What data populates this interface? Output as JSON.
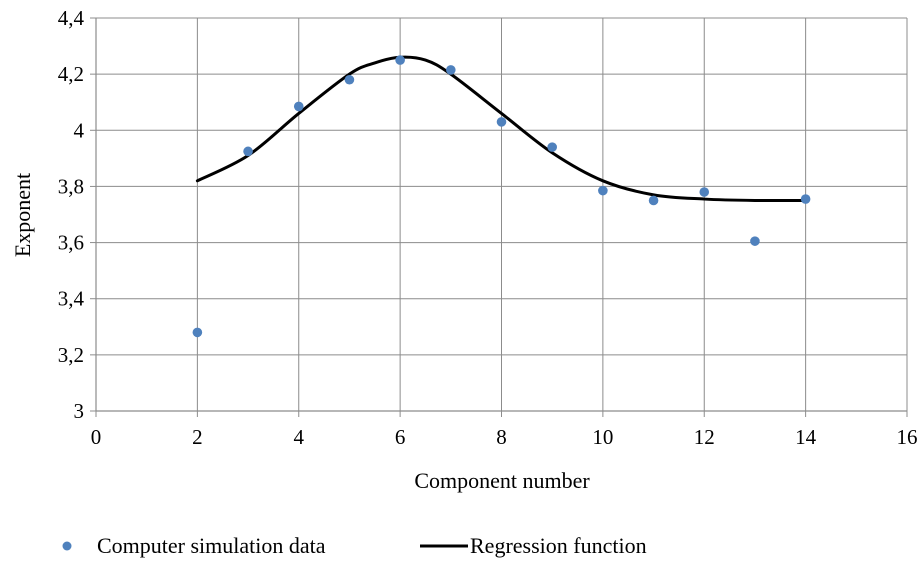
{
  "chart_data": {
    "type": "scatter",
    "xlabel": "Component number",
    "ylabel": "Exponent",
    "xlim": [
      0,
      16
    ],
    "ylim": [
      3,
      4.4
    ],
    "xticks": [
      0,
      2,
      4,
      6,
      8,
      10,
      12,
      14,
      16
    ],
    "yticks": [
      3,
      3.2,
      3.4,
      3.6,
      3.8,
      4,
      4.2,
      4.4
    ],
    "xtick_labels": [
      "0",
      "2",
      "4",
      "6",
      "8",
      "10",
      "12",
      "14",
      "16"
    ],
    "ytick_labels": [
      "3",
      "3,2",
      "3,4",
      "3,6",
      "3,8",
      "4",
      "4,2",
      "4,4"
    ],
    "grid": true,
    "legend_position": "bottom",
    "series": [
      {
        "name": "Computer simulation data",
        "kind": "scatter",
        "color": "#4f81bd",
        "x": [
          2,
          3,
          4,
          5,
          6,
          7,
          8,
          9,
          10,
          11,
          12,
          13,
          14
        ],
        "y": [
          3.28,
          3.925,
          4.085,
          4.18,
          4.25,
          4.215,
          4.03,
          3.94,
          3.785,
          3.75,
          3.78,
          3.605,
          3.755
        ]
      },
      {
        "name": "Regression function",
        "kind": "line",
        "color": "#000000",
        "x": [
          2,
          3,
          4,
          5,
          5.5,
          6,
          6.5,
          7,
          8,
          9,
          10,
          11,
          12,
          13,
          14
        ],
        "y": [
          3.82,
          3.91,
          4.06,
          4.2,
          4.24,
          4.26,
          4.25,
          4.2,
          4.06,
          3.92,
          3.82,
          3.77,
          3.755,
          3.75,
          3.75
        ]
      }
    ]
  }
}
